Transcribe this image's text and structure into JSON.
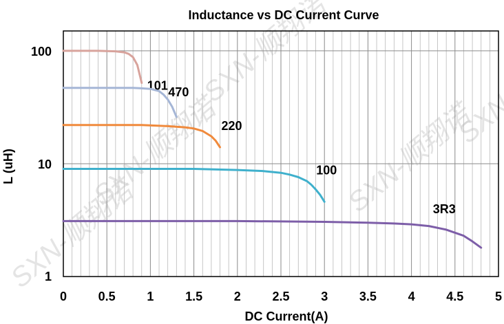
{
  "chart_data": {
    "type": "line",
    "title": "Inductance vs  DC Current Curve",
    "xlabel": "DC Current(A)",
    "ylabel": "L (uH)",
    "xlim": [
      0,
      5
    ],
    "ylim": [
      1,
      150
    ],
    "yscale": "log",
    "grid": true,
    "x_ticks": [
      "0",
      "0.5",
      "1",
      "1.5",
      "2",
      "2.5",
      "3",
      "3.5",
      "4",
      "4.5",
      "5"
    ],
    "y_ticks": [
      "1",
      "10",
      "100"
    ],
    "watermark": "SXN-顺翔诺",
    "series": [
      {
        "name": "101",
        "color": "#d8a39c",
        "x": [
          0,
          0.1,
          0.2,
          0.3,
          0.4,
          0.5,
          0.6,
          0.7,
          0.75,
          0.8,
          0.85,
          0.9
        ],
        "y": [
          100,
          100,
          100,
          100,
          100,
          99.5,
          99,
          97,
          94,
          88,
          75,
          52
        ]
      },
      {
        "name": "470",
        "color": "#a5b6d6",
        "x": [
          0,
          0.2,
          0.4,
          0.6,
          0.8,
          0.9,
          1.0,
          1.1,
          1.15,
          1.2,
          1.25,
          1.3
        ],
        "y": [
          47,
          47,
          47,
          47,
          47,
          46.5,
          46,
          44,
          41,
          37,
          32,
          26
        ]
      },
      {
        "name": "220",
        "color": "#f08a3c",
        "x": [
          0,
          0.3,
          0.6,
          0.9,
          1.2,
          1.4,
          1.5,
          1.6,
          1.7,
          1.75,
          1.8
        ],
        "y": [
          22,
          22,
          22,
          22,
          21.5,
          21,
          20.5,
          19.5,
          17.5,
          16,
          14
        ]
      },
      {
        "name": "100",
        "color": "#3fb0cc",
        "x": [
          0,
          0.5,
          1.0,
          1.5,
          2.0,
          2.3,
          2.5,
          2.6,
          2.7,
          2.8,
          2.85,
          2.9,
          2.95,
          3.0
        ],
        "y": [
          9,
          9,
          9,
          9,
          8.8,
          8.6,
          8.3,
          8.0,
          7.6,
          7.0,
          6.5,
          5.9,
          5.3,
          4.6
        ]
      },
      {
        "name": "3R3",
        "color": "#7d5ea8",
        "x": [
          0,
          0.5,
          1.0,
          1.5,
          2.0,
          2.5,
          3.0,
          3.5,
          3.8,
          4.0,
          4.2,
          4.4,
          4.6,
          4.7,
          4.8
        ],
        "y": [
          3.1,
          3.1,
          3.1,
          3.1,
          3.1,
          3.08,
          3.05,
          3.0,
          2.95,
          2.9,
          2.8,
          2.6,
          2.3,
          2.05,
          1.8
        ]
      }
    ]
  }
}
